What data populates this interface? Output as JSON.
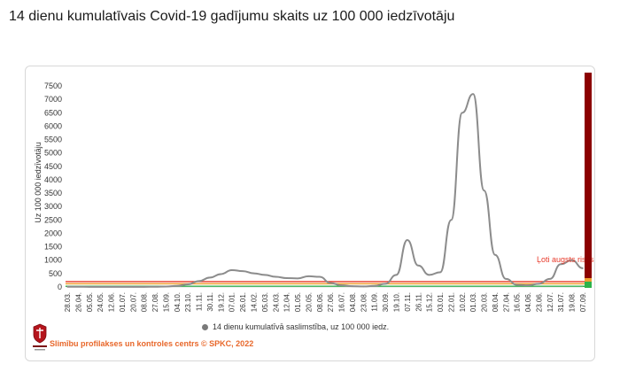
{
  "title": "14 dienu kumulatīvais Covid-19 gadījumu skaits uz 100 000 iedzīvotāju",
  "source": "Slimību profilakses un kontroles centrs © SPKC, 2022",
  "legend_label": "14 dienu kumulatīvā saslimstība, uz 100 000 iedz.",
  "risk_label": "Ļoti augsts risks",
  "colors": {
    "line": "#8c8c8c",
    "risk_bar": "#8b0000",
    "risk_line": "#e8392a",
    "orange_line": "#f0a030",
    "green_line": "#2db34a",
    "source_text": "#e8672a"
  },
  "chart_data": {
    "type": "line",
    "title": "",
    "ylabel": "Uz 100 000 iedzīvotāju",
    "xlabel": "",
    "ylim": [
      0,
      7800
    ],
    "yticks": [
      0,
      500,
      1000,
      1500,
      2000,
      2500,
      3000,
      3500,
      4000,
      4500,
      5000,
      5500,
      6000,
      6500,
      7000,
      7500
    ],
    "x": [
      "28.03.",
      "26.04.",
      "05.05.",
      "24.05.",
      "12.06.",
      "01.07.",
      "20.07.",
      "08.08.",
      "27.08.",
      "15.09.",
      "04.10.",
      "23.10.",
      "11.11.",
      "30.11.",
      "19.12.",
      "07.01.",
      "26.01.",
      "14.02.",
      "05.03.",
      "24.03.",
      "12.04.",
      "01.05.",
      "20.05.",
      "08.06.",
      "27.06.",
      "16.07.",
      "04.08.",
      "23.08.",
      "11.09.",
      "30.09.",
      "19.10.",
      "07.11.",
      "26.11.",
      "15.12.",
      "03.01.",
      "22.01.",
      "10.02.",
      "01.03.",
      "20.03.",
      "08.04.",
      "27.04.",
      "16.05.",
      "04.06.",
      "23.06.",
      "12.07.",
      "31.07.",
      "19.08.",
      "07.09."
    ],
    "series": [
      {
        "values": [
          10,
          8,
          5,
          5,
          5,
          5,
          5,
          5,
          8,
          15,
          40,
          100,
          220,
          350,
          480,
          630,
          590,
          510,
          450,
          380,
          330,
          320,
          400,
          380,
          150,
          60,
          30,
          20,
          40,
          120,
          450,
          1750,
          800,
          450,
          550,
          2500,
          6500,
          7200,
          3600,
          1200,
          300,
          80,
          60,
          120,
          300,
          850,
          1000,
          700
        ]
      }
    ],
    "thresholds": [
      {
        "label": "Ļoti augsts risks",
        "value": 200,
        "color": "#e8392a"
      },
      {
        "value": 120,
        "color": "#f0a030"
      },
      {
        "value": 25,
        "color": "#2db34a"
      }
    ],
    "grid": false,
    "legend_position": "bottom"
  }
}
